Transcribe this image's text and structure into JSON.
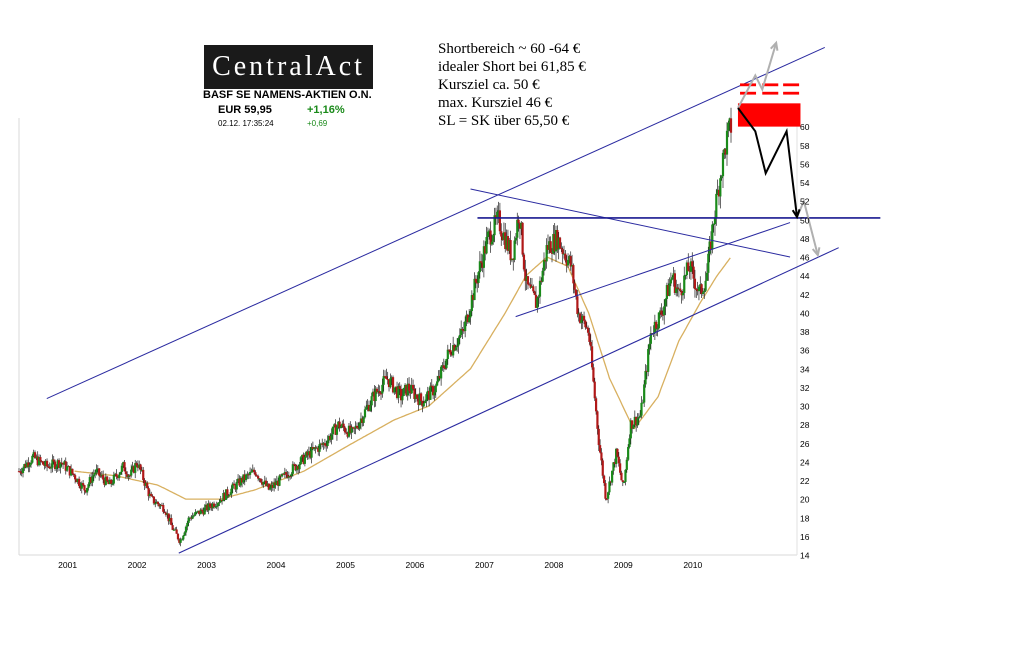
{
  "logo": {
    "text": "CentralAct"
  },
  "ticker": {
    "name": "BASF SE NAMENS-AKTIEN O.N.",
    "price": "EUR 59,95",
    "change_pct": "+1,16%",
    "timestamp": "02.12. 17:35:24",
    "change_abs": "+0,69"
  },
  "notes": [
    "Shortbereich ~ 60 -64 €",
    "idealer Short bei 61,85 €",
    "Kursziel ca. 50 €",
    "max. Kursziel 46 €",
    "SL = SK über 65,50 €"
  ],
  "colors": {
    "candle_up": "#1a8a1a",
    "candle_down": "#b01818",
    "moving_average": "#d8b060",
    "trendline": "#2a2aa0",
    "resistance": "#1a1a90",
    "short_zone": "#ff0000",
    "arrow_primary": "#000000",
    "arrow_alt": "#b0b0b0"
  },
  "chart_data": {
    "type": "candlestick",
    "title": "",
    "xlabel": "",
    "ylabel": "",
    "x_ticks": [
      "2001",
      "2002",
      "2003",
      "2004",
      "2005",
      "2006",
      "2007",
      "2008",
      "2009",
      "2010"
    ],
    "y_ticks": [
      "14",
      "16",
      "18",
      "20",
      "22",
      "24",
      "26",
      "28",
      "30",
      "32",
      "34",
      "36",
      "38",
      "40",
      "42",
      "44",
      "46",
      "48",
      "50",
      "52",
      "54",
      "56",
      "58",
      "60"
    ],
    "ylim": [
      14,
      62
    ],
    "xlim": [
      2000.4,
      2011.6
    ],
    "y_axis_side": "right",
    "grid": false,
    "series": [
      {
        "type": "price",
        "points": [
          [
            2000.4,
            23
          ],
          [
            2000.6,
            24.5
          ],
          [
            2000.8,
            23.5
          ],
          [
            2001.0,
            24
          ],
          [
            2001.2,
            22.5
          ],
          [
            2001.35,
            21
          ],
          [
            2001.5,
            23
          ],
          [
            2001.7,
            21.5
          ],
          [
            2001.9,
            23.5
          ],
          [
            2002.0,
            22.5
          ],
          [
            2002.1,
            24
          ],
          [
            2002.3,
            20
          ],
          [
            2002.5,
            19
          ],
          [
            2002.6,
            17
          ],
          [
            2002.72,
            15.5
          ],
          [
            2002.85,
            18
          ],
          [
            2003.1,
            19
          ],
          [
            2003.3,
            20
          ],
          [
            2003.6,
            22
          ],
          [
            2003.8,
            23
          ],
          [
            2004.0,
            21
          ],
          [
            2004.3,
            23
          ],
          [
            2004.6,
            25
          ],
          [
            2004.8,
            26
          ],
          [
            2005.0,
            28
          ],
          [
            2005.2,
            27
          ],
          [
            2005.5,
            31
          ],
          [
            2005.7,
            33
          ],
          [
            2005.9,
            31
          ],
          [
            2006.0,
            32
          ],
          [
            2006.2,
            30.5
          ],
          [
            2006.4,
            32
          ],
          [
            2006.6,
            36
          ],
          [
            2006.8,
            38
          ],
          [
            2007.0,
            44
          ],
          [
            2007.15,
            48
          ],
          [
            2007.3,
            50
          ],
          [
            2007.5,
            46
          ],
          [
            2007.6,
            51
          ],
          [
            2007.7,
            43
          ],
          [
            2007.85,
            41
          ],
          [
            2008.0,
            47
          ],
          [
            2008.15,
            48
          ],
          [
            2008.35,
            45
          ],
          [
            2008.45,
            40
          ],
          [
            2008.6,
            38
          ],
          [
            2008.75,
            26
          ],
          [
            2008.85,
            20
          ],
          [
            2009.0,
            25
          ],
          [
            2009.1,
            21
          ],
          [
            2009.2,
            28
          ],
          [
            2009.35,
            29
          ],
          [
            2009.5,
            38
          ],
          [
            2009.65,
            40
          ],
          [
            2009.8,
            44
          ],
          [
            2009.9,
            42
          ],
          [
            2010.05,
            45
          ],
          [
            2010.2,
            42
          ],
          [
            2010.3,
            44
          ],
          [
            2010.4,
            50
          ],
          [
            2010.5,
            55
          ],
          [
            2010.6,
            59
          ],
          [
            2010.65,
            60
          ]
        ]
      },
      {
        "type": "moving_average",
        "points": [
          [
            2001.2,
            23
          ],
          [
            2001.8,
            22.5
          ],
          [
            2002.4,
            21.5
          ],
          [
            2002.8,
            20
          ],
          [
            2003.3,
            20
          ],
          [
            2003.8,
            21
          ],
          [
            2004.5,
            23
          ],
          [
            2005.2,
            26
          ],
          [
            2005.8,
            28.5
          ],
          [
            2006.3,
            30
          ],
          [
            2006.9,
            34
          ],
          [
            2007.4,
            40
          ],
          [
            2007.7,
            44
          ],
          [
            2008.0,
            46
          ],
          [
            2008.3,
            45
          ],
          [
            2008.6,
            40
          ],
          [
            2008.9,
            33
          ],
          [
            2009.25,
            27.5
          ],
          [
            2009.6,
            31
          ],
          [
            2009.9,
            37
          ],
          [
            2010.2,
            41
          ],
          [
            2010.45,
            44
          ],
          [
            2010.65,
            46
          ]
        ]
      }
    ],
    "annotations": {
      "channel_upper": [
        [
          2000.8,
          30.8
        ],
        [
          2012.0,
          68.5
        ]
      ],
      "channel_lower": [
        [
          2002.7,
          14.2
        ],
        [
          2012.2,
          47
        ]
      ],
      "triangle_upper": [
        [
          2006.9,
          53.3
        ],
        [
          2011.5,
          46
        ]
      ],
      "triangle_lower": [
        [
          2007.55,
          39.6
        ],
        [
          2011.5,
          49.7
        ]
      ],
      "resistance_line": [
        [
          2007.0,
          50.2
        ],
        [
          2012.8,
          50.2
        ]
      ],
      "short_zone": [
        62.5,
        60.0
      ],
      "sl_marks": 64.5,
      "arrow_main": [
        [
          2010.75,
          62
        ],
        [
          2011.0,
          59.5
        ],
        [
          2011.15,
          55
        ],
        [
          2011.45,
          59.5
        ],
        [
          2011.6,
          50.3
        ]
      ],
      "arrow_alt_top": [
        [
          2010.75,
          62
        ],
        [
          2011.0,
          65.5
        ],
        [
          2011.1,
          64
        ],
        [
          2011.3,
          69
        ]
      ],
      "arrow_alt_bottom": [
        [
          2011.6,
          50.3
        ],
        [
          2011.7,
          52
        ],
        [
          2011.9,
          46.2
        ]
      ]
    }
  }
}
